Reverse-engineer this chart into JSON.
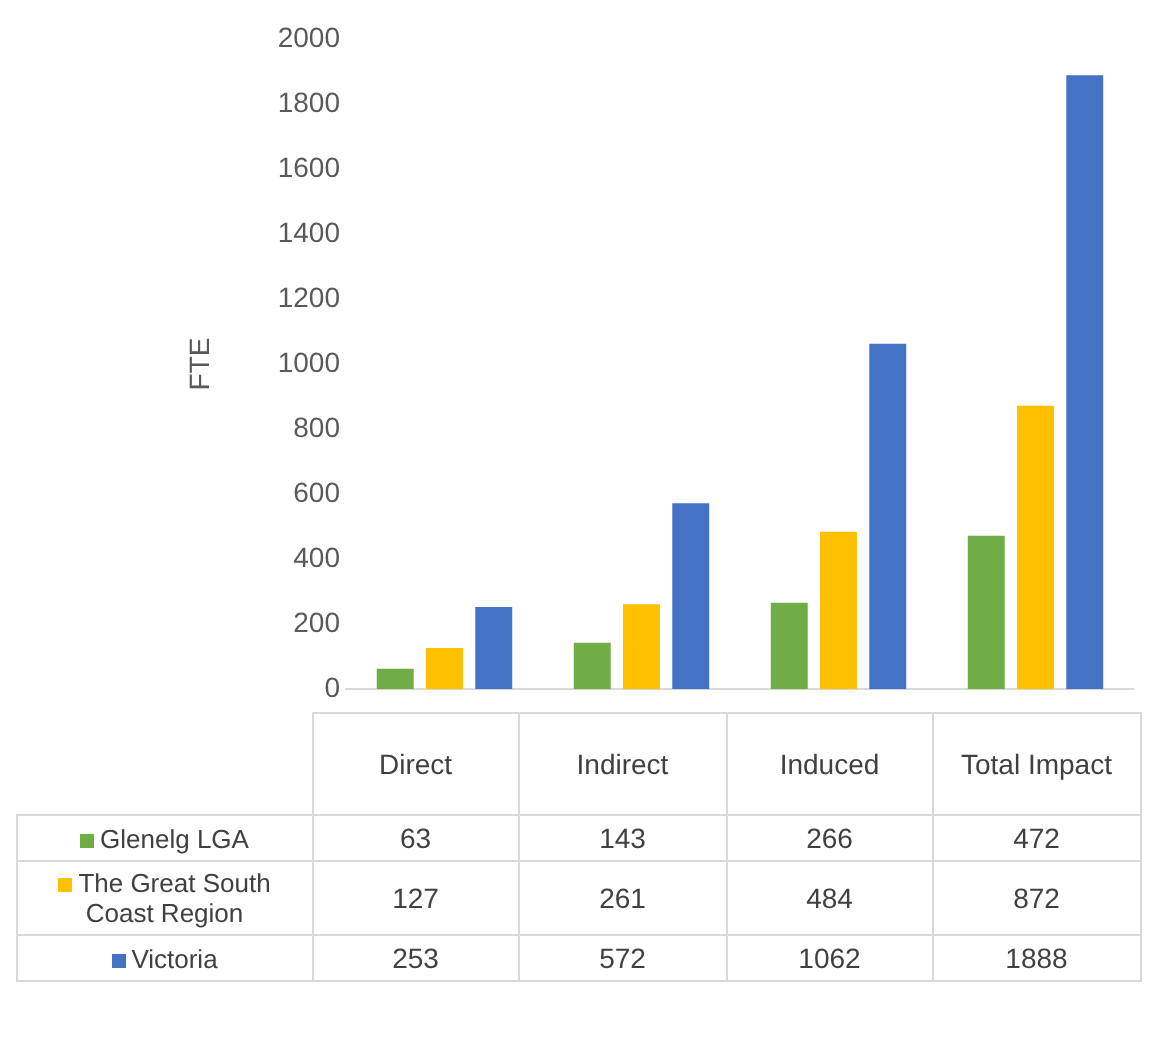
{
  "chart_data": {
    "type": "bar",
    "ylabel": "FTE",
    "categories": [
      "Direct",
      "Indirect",
      "Induced",
      "Total Impact"
    ],
    "series": [
      {
        "name": "Glenelg LGA",
        "color": "#70ad47",
        "values": [
          63,
          143,
          266,
          472
        ]
      },
      {
        "name": "The Great South Coast Region",
        "color": "#ffc000",
        "values": [
          127,
          261,
          484,
          872
        ]
      },
      {
        "name": "Victoria",
        "color": "#4472c4",
        "values": [
          253,
          572,
          1062,
          1888
        ]
      }
    ],
    "ylim": [
      0,
      2000
    ],
    "yticks": [
      0,
      200,
      400,
      600,
      800,
      1000,
      1200,
      1400,
      1600,
      1800,
      2000
    ],
    "grid": false,
    "legend": "bottom",
    "data_labels": true
  }
}
